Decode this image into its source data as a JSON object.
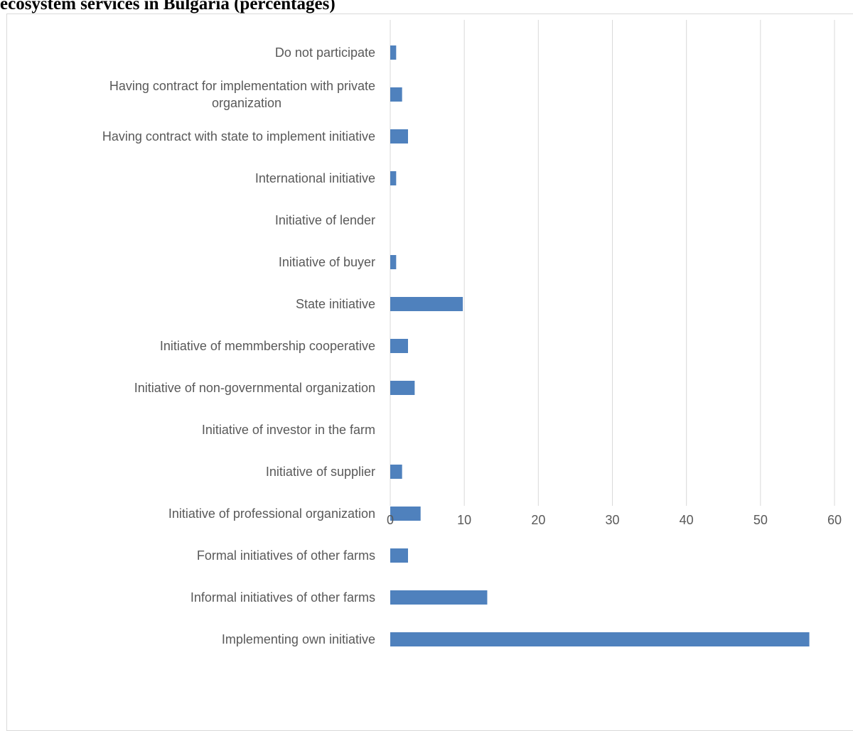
{
  "header": {
    "title": "ecosystem services in Bulgaria (percentages)"
  },
  "chart_data": {
    "type": "bar",
    "orientation": "horizontal",
    "title": "",
    "xlabel": "",
    "ylabel": "",
    "xlim": [
      0,
      60
    ],
    "xticks": [
      0,
      10,
      20,
      30,
      40,
      50,
      60
    ],
    "grid": "vertical",
    "legend": "none",
    "bar_color": "#4f81bd",
    "categories": [
      [
        "Do not participate"
      ],
      [
        "Having contract for implementation with private",
        "organization"
      ],
      [
        "Having contract with state to implement initiative"
      ],
      [
        "International initiative"
      ],
      [
        "Initiative of lender"
      ],
      [
        "Initiative of buyer"
      ],
      [
        "State initiative"
      ],
      [
        "Initiative of memmbership cooperative"
      ],
      [
        "Initiative of non-governmental organization"
      ],
      [
        "Initiative of investor in the farm"
      ],
      [
        "Initiative of supplier"
      ],
      [
        "Initiative of professional organization"
      ],
      [
        "Formal initiatives of other farms"
      ],
      [
        "Informal initiatives of other farms"
      ],
      [
        "Implementing own initiative"
      ]
    ],
    "values": [
      0.8,
      1.6,
      2.4,
      0.8,
      0,
      0.8,
      9.8,
      2.4,
      3.3,
      0,
      1.6,
      4.1,
      2.4,
      13.1,
      56.6
    ]
  }
}
